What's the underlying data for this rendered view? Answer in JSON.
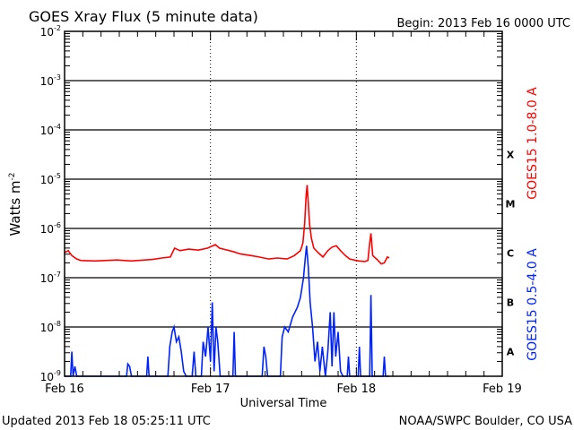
{
  "chart_data": {
    "type": "line",
    "title": "GOES Xray Flux (5 minute data)",
    "subtitle": "Begin:  2013 Feb 16 0000 UTC",
    "xlabel": "Universal Time",
    "ylabel": "Watts m",
    "ylabel_sup": "-2",
    "yscale": "log",
    "ylim_exp": [
      -9,
      -2
    ],
    "ytick_exponents": [
      -2,
      -3,
      -4,
      -5,
      -6,
      -7,
      -8,
      -9
    ],
    "ytick_base": "10",
    "xlim_hours": [
      0,
      72
    ],
    "xticks": [
      {
        "hour": 0,
        "label": "Feb 16"
      },
      {
        "hour": 24,
        "label": "Feb 17"
      },
      {
        "hour": 48,
        "label": "Feb 18"
      },
      {
        "hour": 72,
        "label": "Feb 19"
      }
    ],
    "flare_classes": [
      {
        "label": "X",
        "exp": -4
      },
      {
        "label": "M",
        "exp": -5
      },
      {
        "label": "C",
        "exp": -6
      },
      {
        "label": "B",
        "exp": -7
      },
      {
        "label": "A",
        "exp": -8
      }
    ],
    "grid": "horizontal decades solid, vertical day lines dotted",
    "series": [
      {
        "name": "GOES15 1.0-8.0 A",
        "color": "#ff0000",
        "points_hour_log10": [
          [
            0,
            -6.49
          ],
          [
            0.6,
            -6.45
          ],
          [
            1.2,
            -6.55
          ],
          [
            2.0,
            -6.62
          ],
          [
            2.7,
            -6.65
          ],
          [
            5,
            -6.66
          ],
          [
            8.6,
            -6.64
          ],
          [
            11,
            -6.66
          ],
          [
            14.5,
            -6.63
          ],
          [
            16,
            -6.6
          ],
          [
            17.4,
            -6.58
          ],
          [
            18.1,
            -6.4
          ],
          [
            19,
            -6.45
          ],
          [
            20.4,
            -6.42
          ],
          [
            22,
            -6.44
          ],
          [
            23.5,
            -6.4
          ],
          [
            24.8,
            -6.33
          ],
          [
            25.5,
            -6.4
          ],
          [
            27.7,
            -6.47
          ],
          [
            29,
            -6.52
          ],
          [
            30.7,
            -6.55
          ],
          [
            32,
            -6.58
          ],
          [
            33.6,
            -6.62
          ],
          [
            35,
            -6.6
          ],
          [
            36.6,
            -6.62
          ],
          [
            37.8,
            -6.55
          ],
          [
            38.8,
            -6.45
          ],
          [
            39.2,
            -6.3
          ],
          [
            39.5,
            -5.9
          ],
          [
            39.7,
            -5.4
          ],
          [
            39.9,
            -5.12
          ],
          [
            40.1,
            -5.5
          ],
          [
            40.3,
            -5.9
          ],
          [
            40.6,
            -6.2
          ],
          [
            41.0,
            -6.4
          ],
          [
            41.8,
            -6.5
          ],
          [
            42.5,
            -6.58
          ],
          [
            43.3,
            -6.45
          ],
          [
            44.0,
            -6.38
          ],
          [
            44.7,
            -6.35
          ],
          [
            45.4,
            -6.45
          ],
          [
            46.2,
            -6.55
          ],
          [
            46.9,
            -6.62
          ],
          [
            48.4,
            -6.66
          ],
          [
            49.4,
            -6.67
          ],
          [
            49.9,
            -6.65
          ],
          [
            50.2,
            -6.3
          ],
          [
            50.4,
            -6.1
          ],
          [
            50.7,
            -6.55
          ],
          [
            51.4,
            -6.63
          ],
          [
            52.1,
            -6.72
          ],
          [
            52.6,
            -6.7
          ],
          [
            53.1,
            -6.58
          ],
          [
            53.4,
            -6.6
          ]
        ]
      },
      {
        "name": "GOES15 0.5-4.0 A",
        "color": "#0022ff",
        "points_hour_log10": [
          [
            0,
            -9
          ],
          [
            1.0,
            -9
          ],
          [
            1.2,
            -8.5
          ],
          [
            1.4,
            -9
          ],
          [
            1.7,
            -8.8
          ],
          [
            2.0,
            -9
          ],
          [
            10.2,
            -9
          ],
          [
            10.4,
            -8.75
          ],
          [
            10.7,
            -8.8
          ],
          [
            11,
            -9
          ],
          [
            13.5,
            -9
          ],
          [
            13.7,
            -8.6
          ],
          [
            13.9,
            -9
          ],
          [
            17.0,
            -9
          ],
          [
            17.3,
            -8.4
          ],
          [
            17.7,
            -8.1
          ],
          [
            18.0,
            -8.0
          ],
          [
            18.4,
            -8.3
          ],
          [
            18.8,
            -8.2
          ],
          [
            19.2,
            -8.5
          ],
          [
            19.6,
            -8.9
          ],
          [
            20,
            -9
          ],
          [
            21,
            -9
          ],
          [
            21.3,
            -8.5
          ],
          [
            21.6,
            -9
          ],
          [
            22.5,
            -9
          ],
          [
            22.8,
            -8.3
          ],
          [
            23.2,
            -8.6
          ],
          [
            23.6,
            -8.0
          ],
          [
            24.0,
            -8.7
          ],
          [
            24.3,
            -7.5
          ],
          [
            24.6,
            -8.9
          ],
          [
            24.9,
            -8.0
          ],
          [
            25.2,
            -8.3
          ],
          [
            25.6,
            -9
          ],
          [
            27.7,
            -9
          ],
          [
            27.9,
            -8.1
          ],
          [
            28.1,
            -9
          ],
          [
            32.5,
            -9
          ],
          [
            32.8,
            -8.4
          ],
          [
            33.1,
            -8.6
          ],
          [
            33.4,
            -9
          ],
          [
            35.5,
            -9
          ],
          [
            35.8,
            -8.2
          ],
          [
            36.2,
            -8.0
          ],
          [
            36.8,
            -8.1
          ],
          [
            37.5,
            -7.8
          ],
          [
            38.3,
            -7.6
          ],
          [
            38.8,
            -7.4
          ],
          [
            39.3,
            -7.0
          ],
          [
            39.6,
            -6.6
          ],
          [
            39.8,
            -6.35
          ],
          [
            40.1,
            -6.8
          ],
          [
            40.4,
            -7.5
          ],
          [
            40.8,
            -8.0
          ],
          [
            41.2,
            -8.7
          ],
          [
            41.6,
            -8.3
          ],
          [
            42.0,
            -8.9
          ],
          [
            42.4,
            -8.4
          ],
          [
            42.9,
            -9
          ],
          [
            43.3,
            -8.5
          ],
          [
            43.7,
            -7.7
          ],
          [
            44.0,
            -8.8
          ],
          [
            44.3,
            -7.7
          ],
          [
            44.6,
            -8.6
          ],
          [
            45.0,
            -8.1
          ],
          [
            45.4,
            -8.9
          ],
          [
            45.8,
            -9
          ],
          [
            46.5,
            -9
          ],
          [
            46.7,
            -8.6
          ],
          [
            46.9,
            -9
          ],
          [
            48.3,
            -9
          ],
          [
            48.5,
            -8.4
          ],
          [
            48.7,
            -9
          ],
          [
            50.2,
            -9
          ],
          [
            50.4,
            -7.35
          ],
          [
            50.6,
            -9
          ],
          [
            52.4,
            -9
          ],
          [
            52.6,
            -8.6
          ],
          [
            52.8,
            -9
          ],
          [
            53.4,
            -9
          ]
        ]
      }
    ]
  },
  "footer": {
    "updated": "Updated 2013 Feb 18 05:25:11 UTC",
    "source": "NOAA/SWPC Boulder, CO USA"
  }
}
